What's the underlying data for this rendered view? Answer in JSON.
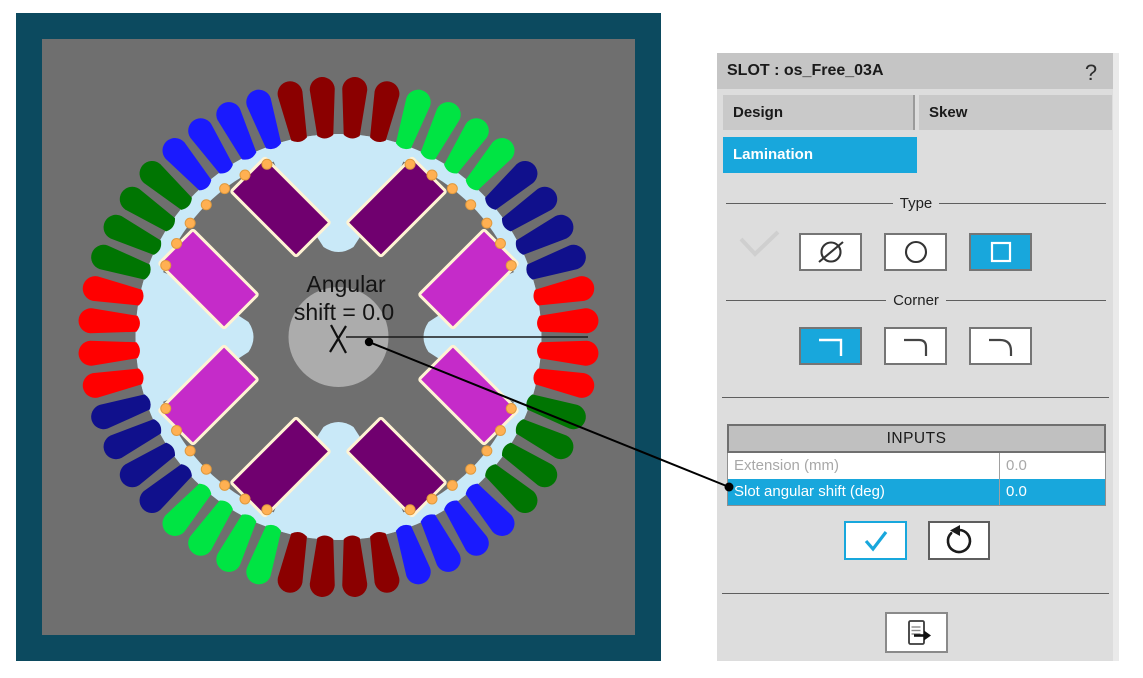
{
  "machine_view": {
    "frame_color": "#0C4A5F",
    "bg_color": "#6F6F6F",
    "shaft_color": "#ACACAC",
    "airgap_color": "#C9E9F8",
    "label_line1": "Angular",
    "label_line2": "shift = 0.0",
    "slots": {
      "count": 48,
      "group_size": 4,
      "palette": [
        "#8B0000",
        "#00E443",
        "#10108C",
        "#FF0000",
        "#007502",
        "#1A1AFE"
      ]
    },
    "magnet_colors": {
      "north": "#C52BC9",
      "south": "#70006F"
    },
    "magnet_outline": "#FFF3D4",
    "dot_color": "#FFB052",
    "dot_edge": "#E09A3E"
  },
  "panel": {
    "accent": "#18A7DC",
    "title": "SLOT : os_Free_03A",
    "help": "?",
    "tabs": [
      {
        "label": "Design"
      },
      {
        "label": "Skew"
      }
    ],
    "subtab": "Lamination",
    "type_section": {
      "legend": "Type",
      "options": [
        "slot-type-none",
        "slot-type-circular",
        "slot-type-rectangular"
      ],
      "selected_index": 2
    },
    "corner_section": {
      "legend": "Corner",
      "options": [
        "corner-sharp",
        "corner-round-small",
        "corner-round-large"
      ],
      "selected_index": 0
    },
    "inputs_table": {
      "header": "INPUTS",
      "rows": [
        {
          "label": "Extension (mm)",
          "value": "0.0",
          "state": "disabled"
        },
        {
          "label": "Slot angular shift (deg)",
          "value": "0.0",
          "state": "selected"
        }
      ]
    }
  }
}
